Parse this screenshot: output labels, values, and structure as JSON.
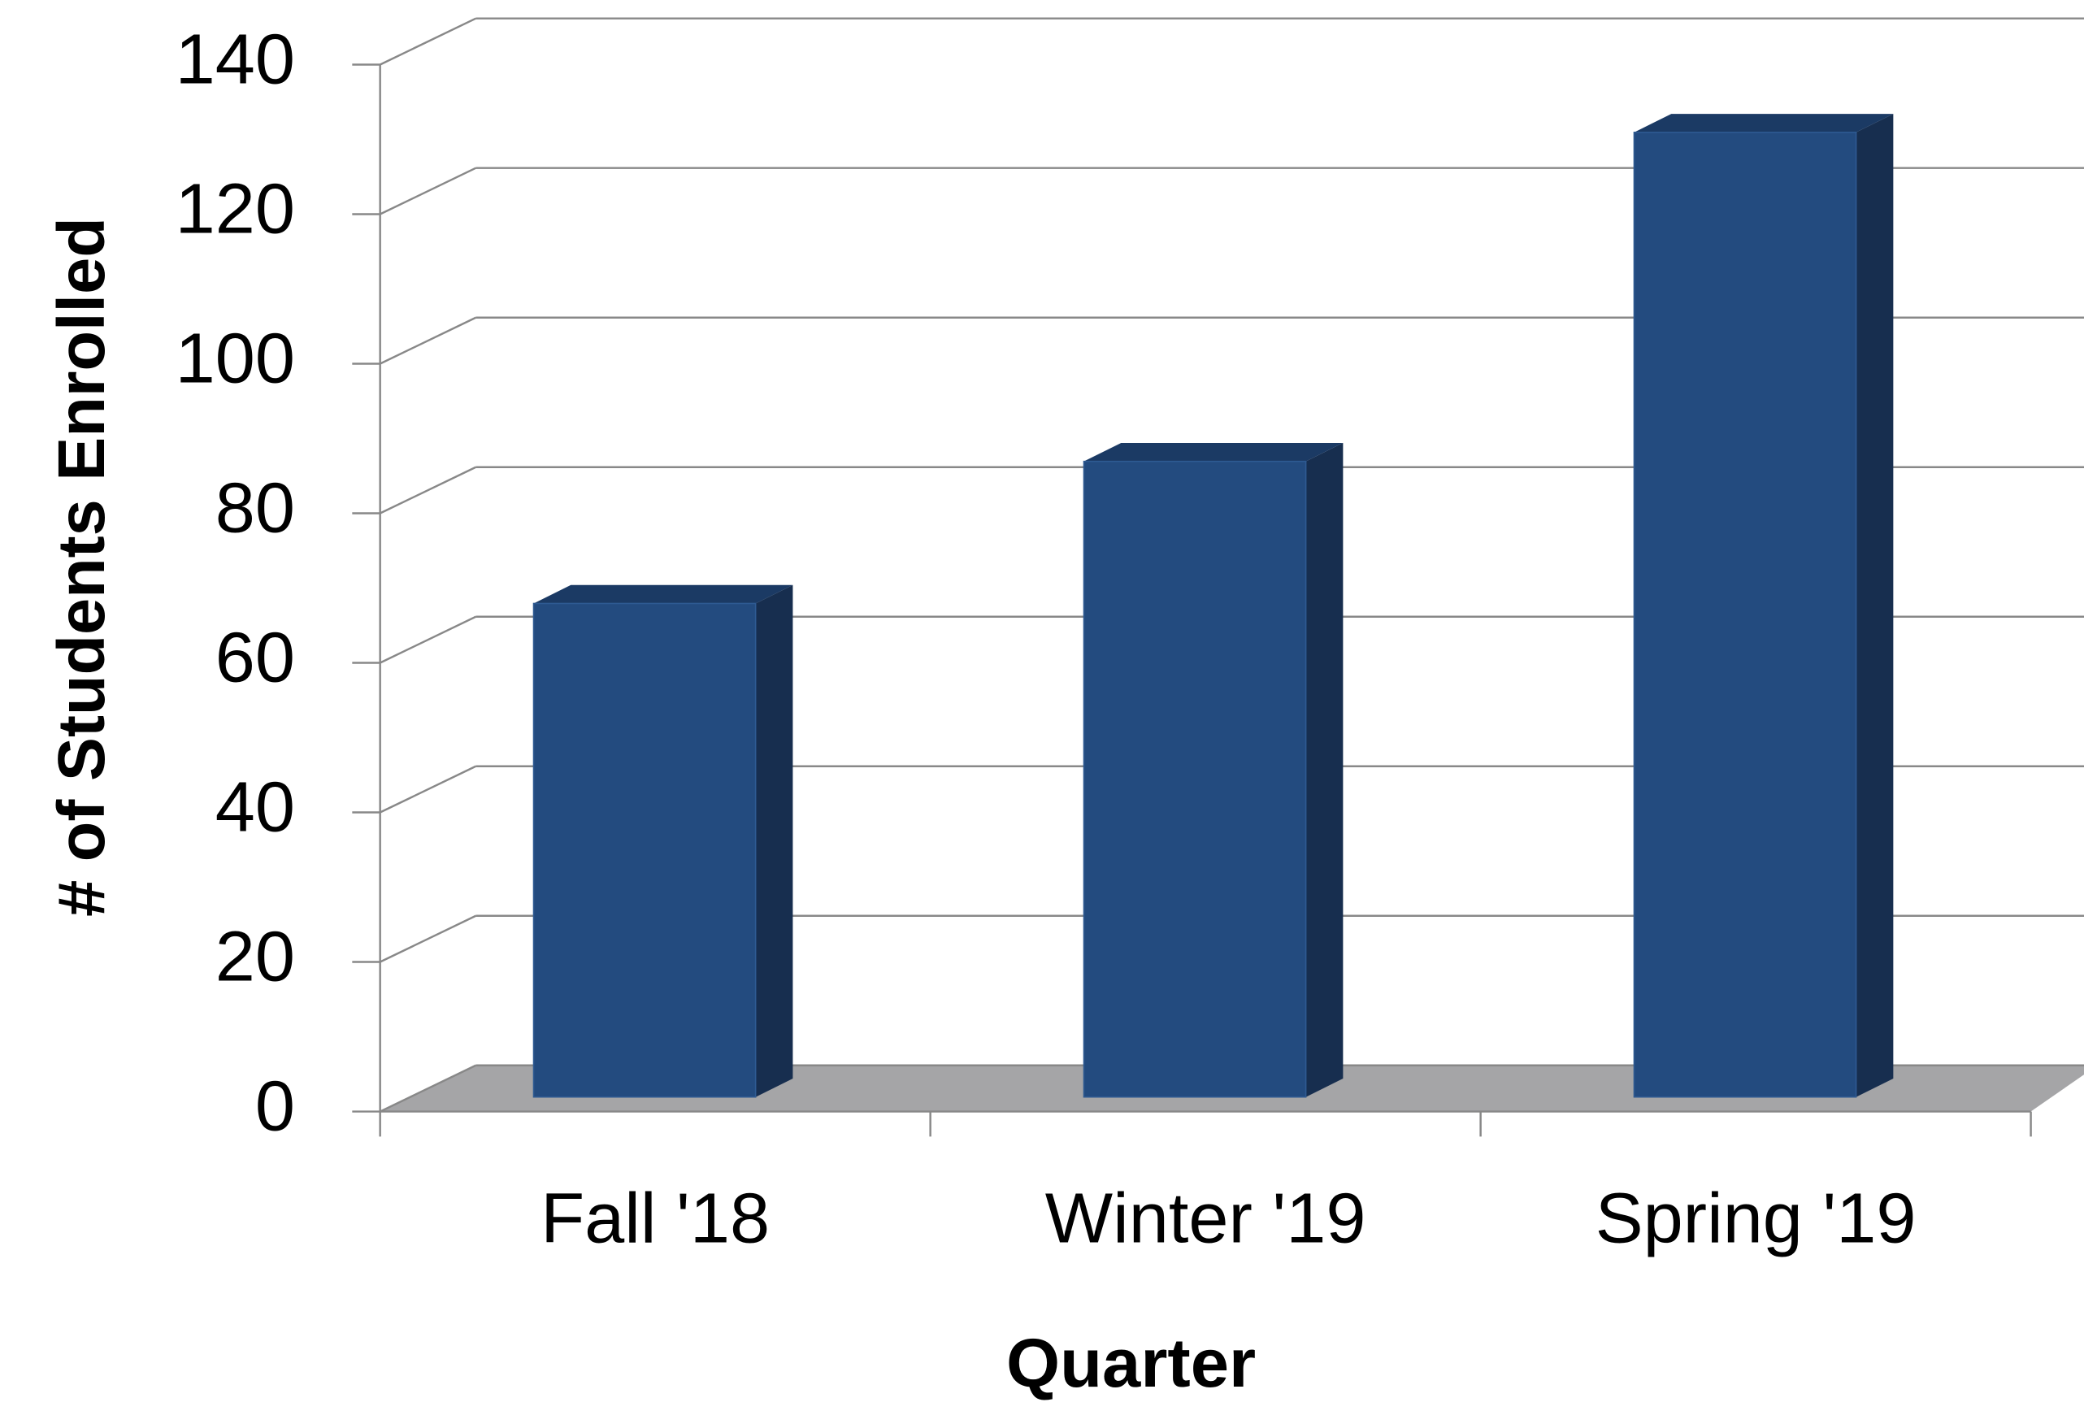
{
  "chart_data": {
    "type": "bar3d",
    "x_label": "Quarter",
    "y_label": "# of Students Enrolled",
    "categories": [
      "Fall '18",
      "Winter '19",
      "Spring '19"
    ],
    "values": [
      66,
      85,
      129
    ],
    "color": "#234b7f",
    "ylim": [
      0,
      140
    ],
    "yticks": [
      0,
      20,
      40,
      60,
      80,
      100,
      120,
      140
    ],
    "grid": true
  }
}
